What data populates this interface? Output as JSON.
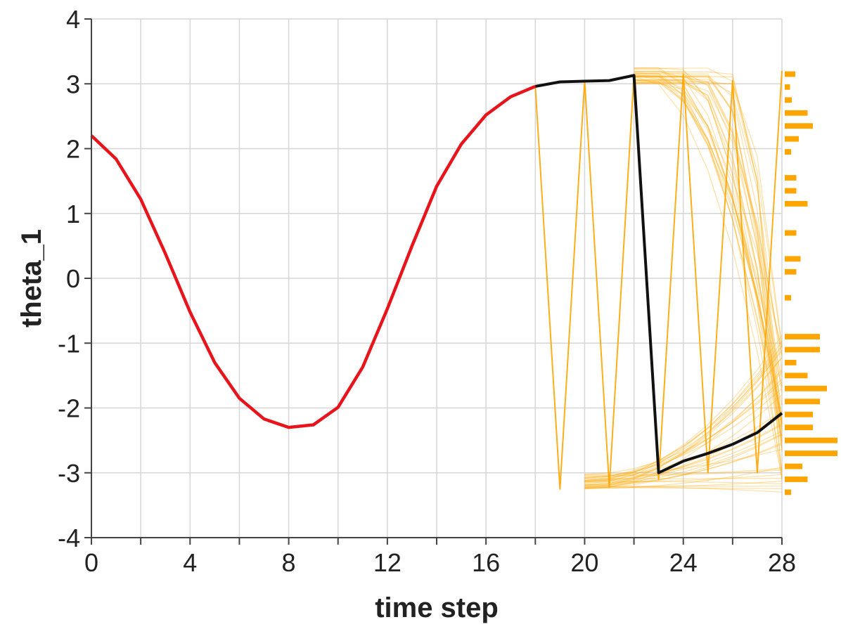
{
  "chart_data": {
    "type": "line",
    "xlabel": "time step",
    "ylabel": "theta_1",
    "xlim": [
      0,
      28
    ],
    "ylim": [
      -4,
      4
    ],
    "x_ticks": [
      0,
      4,
      8,
      12,
      16,
      20,
      24,
      28
    ],
    "x_ticks_labels": [
      "0",
      "4",
      "8",
      "12",
      "16",
      "20",
      "24",
      "28"
    ],
    "y_ticks": [
      4,
      3,
      2,
      1,
      0,
      -1,
      -2,
      -3,
      -4
    ],
    "y_ticks_labels": [
      "4",
      "3",
      "2",
      "1",
      "0",
      "-1",
      "-2",
      "-3",
      "-4"
    ],
    "grid": true,
    "colors": {
      "history": "#e8141b",
      "selected": "#111111",
      "ensemble": "#ffa500",
      "histogram": "#ffa500"
    },
    "series": [
      {
        "role": "history",
        "x": [
          0,
          1,
          2,
          3,
          4,
          5,
          6,
          7,
          8,
          9,
          10,
          11,
          12,
          13,
          14,
          15,
          16,
          17,
          18
        ],
        "values": [
          2.2,
          1.84,
          1.22,
          0.38,
          -0.52,
          -1.3,
          -1.85,
          -2.17,
          -2.3,
          -2.26,
          -1.99,
          -1.37,
          -0.47,
          0.5,
          1.42,
          2.07,
          2.52,
          2.8,
          2.96
        ]
      },
      {
        "role": "selected-trajectory",
        "x": [
          18,
          19,
          20,
          21,
          22,
          23,
          24,
          25,
          26,
          27,
          28
        ],
        "values": [
          2.96,
          3.03,
          3.04,
          3.05,
          3.13,
          -3.0,
          -2.82,
          -2.7,
          -2.56,
          -2.38,
          -2.08
        ]
      },
      {
        "role": "ensemble-zigzag",
        "x": [
          18,
          19,
          20,
          21,
          22,
          23,
          24,
          25,
          26,
          27,
          28
        ],
        "values": [
          2.96,
          -3.25,
          3.05,
          -3.22,
          3.13,
          -3.1,
          3.15,
          -3.0,
          3.05,
          -3.0,
          3.2
        ]
      }
    ],
    "histogram": {
      "bin_centers": [
        3.15,
        2.95,
        2.75,
        2.55,
        2.35,
        2.15,
        1.95,
        1.55,
        1.35,
        1.15,
        0.7,
        0.3,
        0.1,
        -0.3,
        -0.9,
        -1.1,
        -1.3,
        -1.5,
        -1.7,
        -1.9,
        -2.1,
        -2.3,
        -2.5,
        -2.7,
        -2.9,
        -3.1,
        -3.3
      ],
      "counts": [
        3,
        1.5,
        2,
        6.5,
        8,
        4,
        1.8,
        3.3,
        3.3,
        6.5,
        3.3,
        4.5,
        3.3,
        1.8,
        10,
        10,
        3.3,
        6.5,
        12,
        10,
        8,
        8,
        15,
        15,
        5,
        6.5,
        1.8
      ]
    }
  }
}
